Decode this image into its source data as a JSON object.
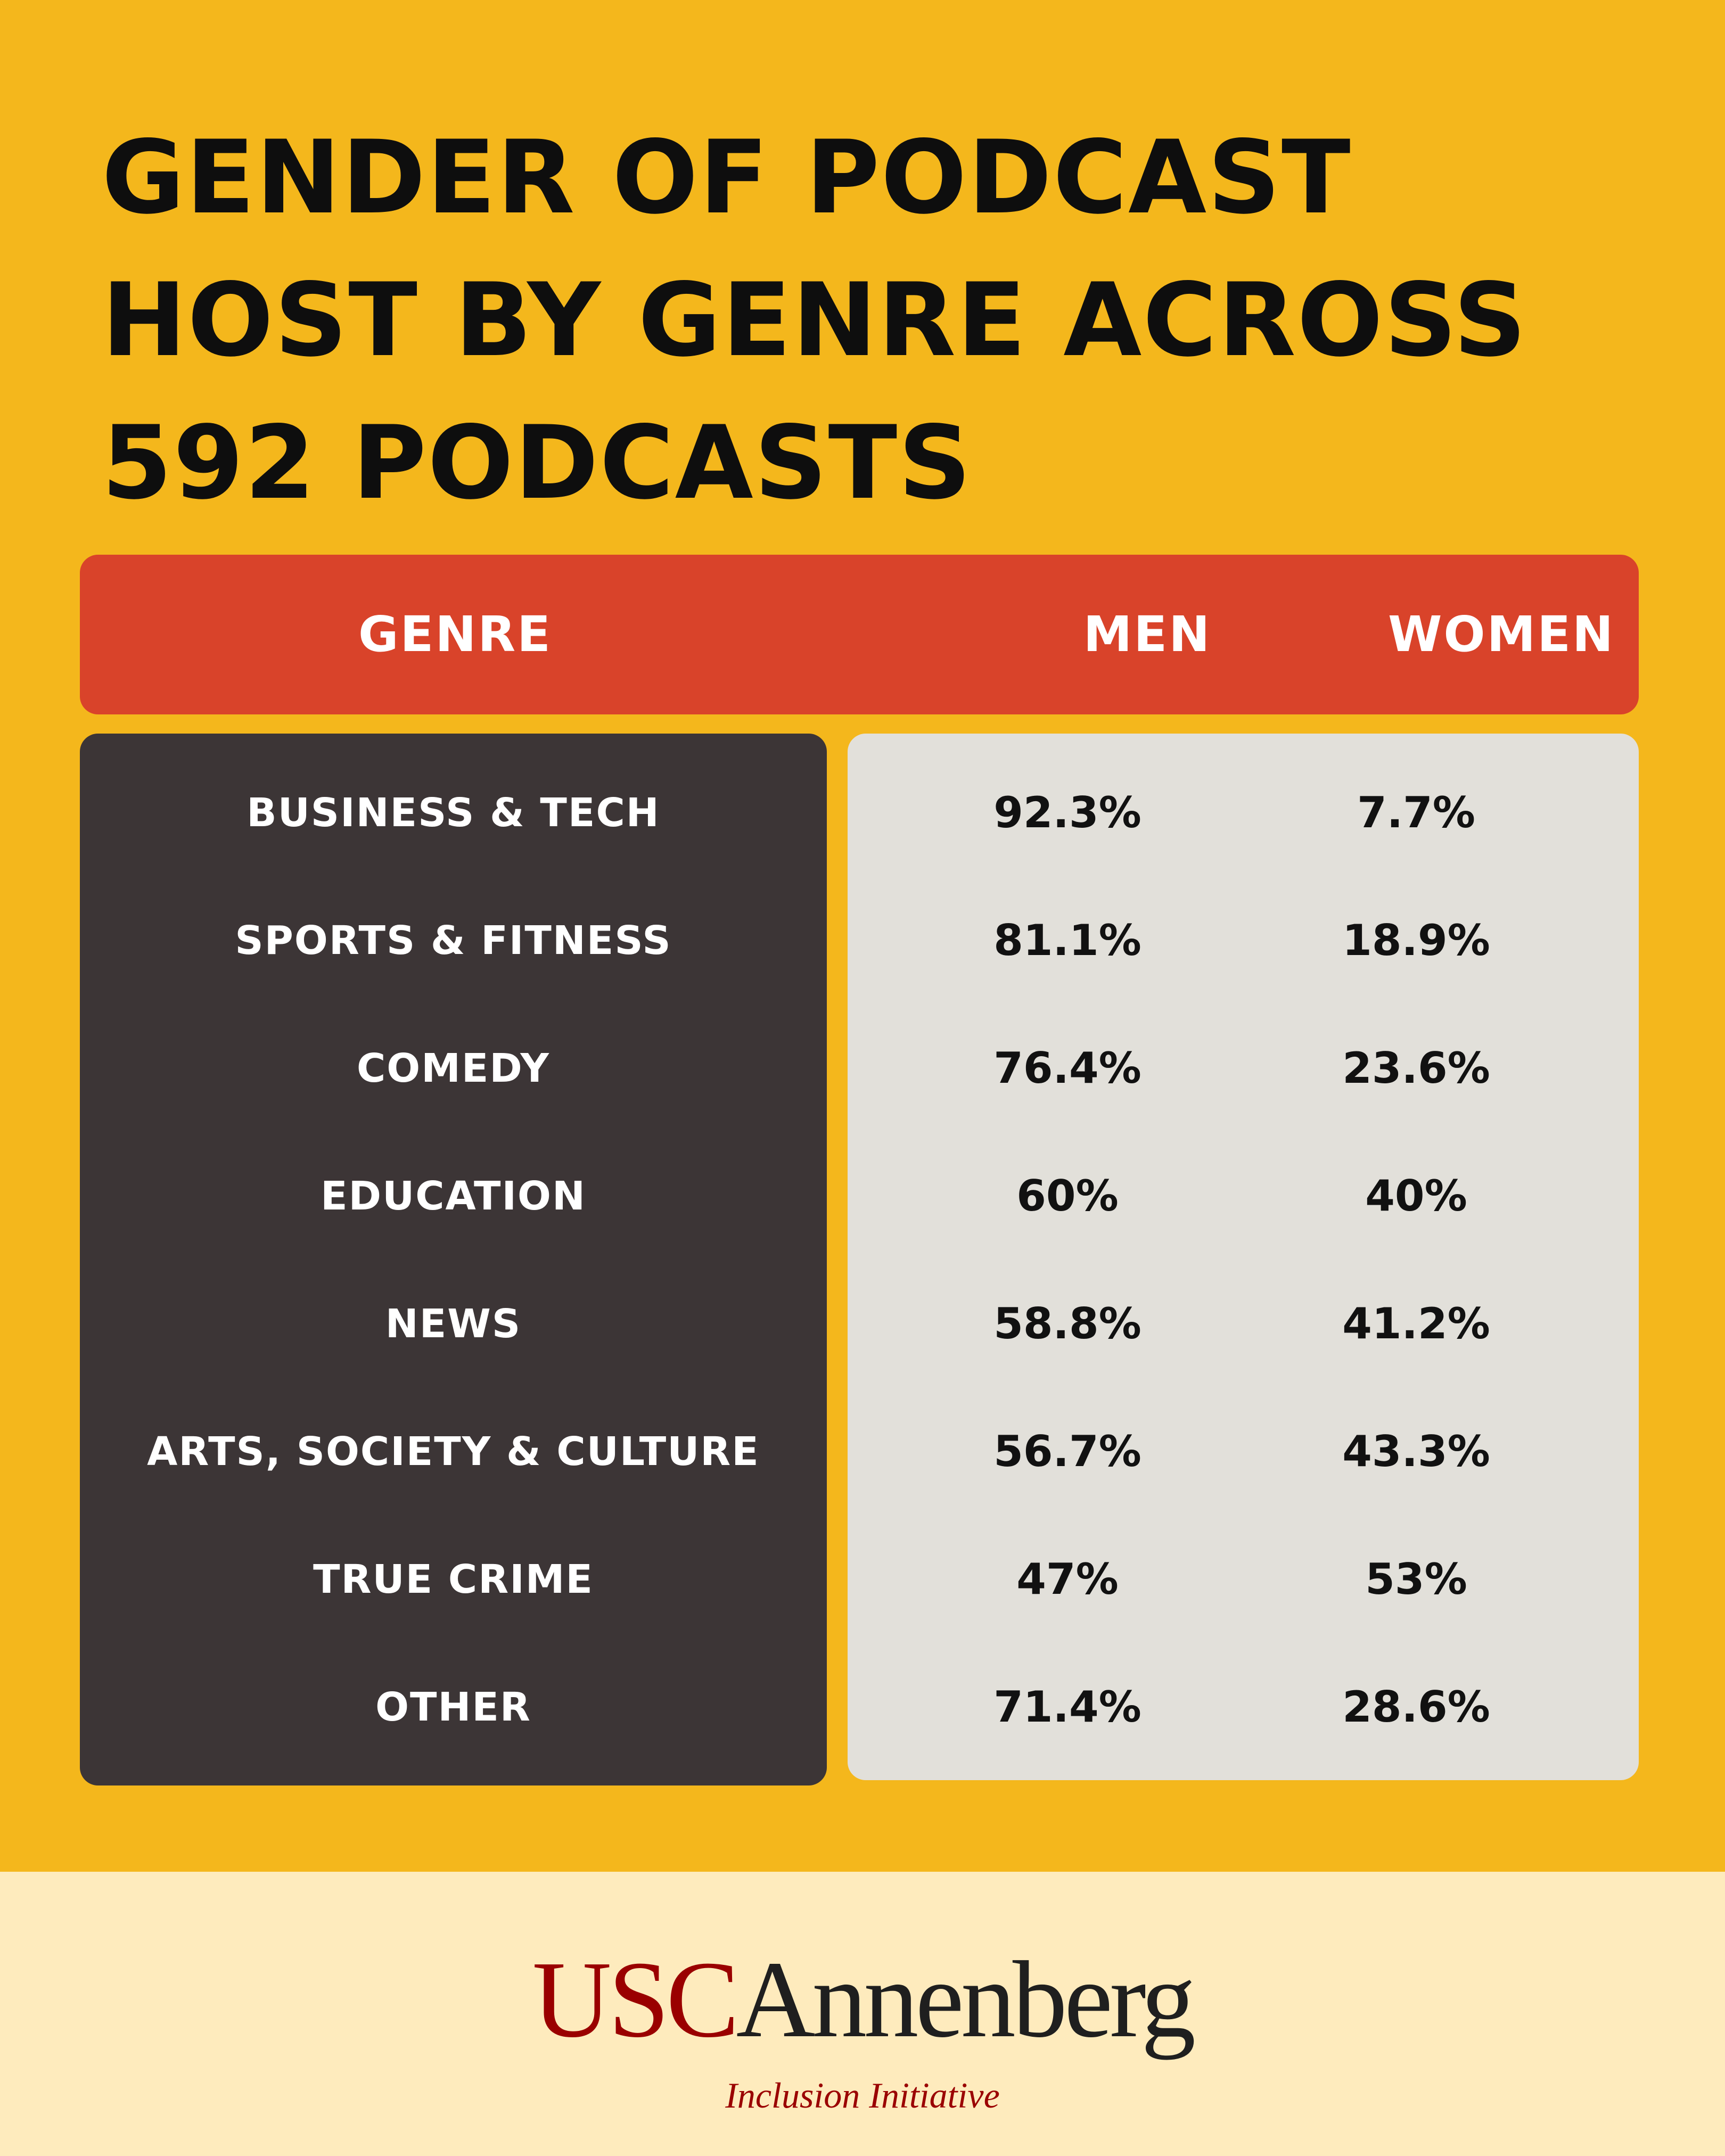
{
  "title": "GENDER OF PODCAST HOST BY GENRE ACROSS 592 PODCASTS",
  "table": {
    "headers": {
      "genre": "GENRE",
      "men": "MEN",
      "women": "WOMEN"
    },
    "rows": [
      {
        "genre": "BUSINESS & TECH",
        "men": "92.3%",
        "women": "7.7%"
      },
      {
        "genre": "SPORTS & FITNESS",
        "men": "81.1%",
        "women": "18.9%"
      },
      {
        "genre": "COMEDY",
        "men": "76.4%",
        "women": "23.6%"
      },
      {
        "genre": "EDUCATION",
        "men": "60%",
        "women": "40%"
      },
      {
        "genre": "NEWS",
        "men": "58.8%",
        "women": "41.2%"
      },
      {
        "genre": "ARTS, SOCIETY & CULTURE",
        "men": "56.7%",
        "women": "43.3%"
      },
      {
        "genre": "TRUE CRIME",
        "men": "47%",
        "women": "53%"
      },
      {
        "genre": "OTHER",
        "men": "71.4%",
        "women": "28.6%"
      }
    ]
  },
  "chart_data": {
    "type": "table",
    "title": "GENDER OF PODCAST HOST BY GENRE ACROSS 592 PODCASTS",
    "columns": [
      "GENRE",
      "MEN",
      "WOMEN"
    ],
    "categories": [
      "BUSINESS & TECH",
      "SPORTS & FITNESS",
      "COMEDY",
      "EDUCATION",
      "NEWS",
      "ARTS, SOCIETY & CULTURE",
      "TRUE CRIME",
      "OTHER"
    ],
    "series": [
      {
        "name": "MEN",
        "values": [
          92.3,
          81.1,
          76.4,
          60,
          58.8,
          56.7,
          47,
          71.4
        ]
      },
      {
        "name": "WOMEN",
        "values": [
          7.7,
          18.9,
          23.6,
          40,
          41.2,
          43.3,
          53,
          28.6
        ]
      }
    ]
  },
  "footer": {
    "logo_usc": "USC",
    "logo_annenberg": "Annenberg",
    "logo_subtitle": "Inclusion Initiative"
  },
  "colors": {
    "background": "#F4B71C",
    "header": "#D9432A",
    "genre_panel": "#3C3536",
    "values_panel": "#E2E0DA",
    "footer": "#FEEBBD",
    "usc_red": "#9A0000"
  }
}
